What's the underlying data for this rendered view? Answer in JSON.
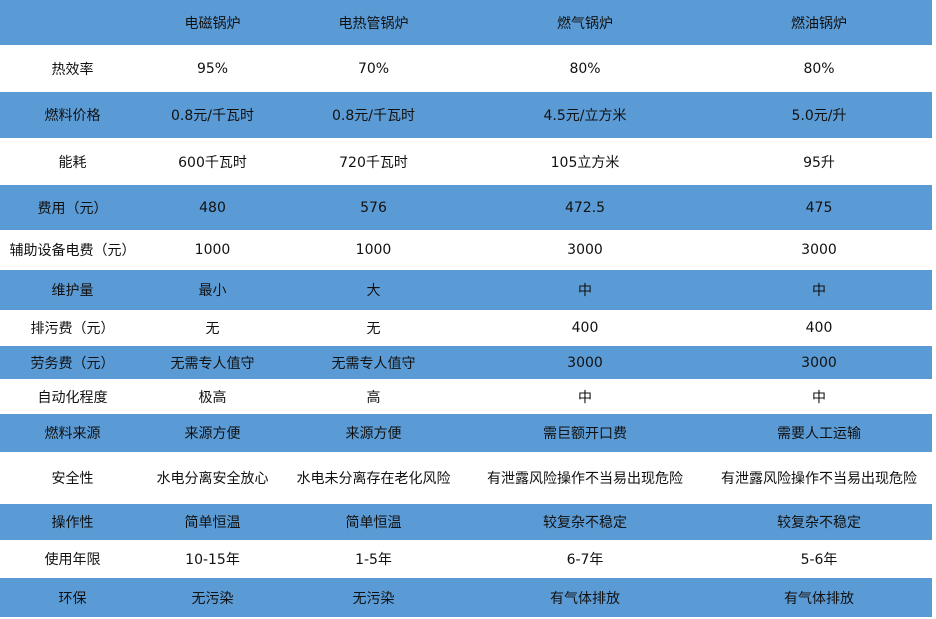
{
  "colors": {
    "band": "#5b9bd5",
    "alt": "#ffffff"
  },
  "header": [
    "",
    "电磁锅炉",
    "电热管锅炉",
    "燃气锅炉",
    "燃油锅炉"
  ],
  "rows": [
    [
      "热效率",
      "95%",
      "70%",
      "80%",
      "80%"
    ],
    [
      "燃料价格",
      "0.8元/千瓦时",
      "0.8元/千瓦时",
      "4.5元/立方米",
      "5.0元/升"
    ],
    [
      "能耗",
      "600千瓦时",
      "720千瓦时",
      "105立方米",
      "95升"
    ],
    [
      "费用（元）",
      "480",
      "576",
      "472.5",
      "475"
    ],
    [
      "辅助设备电费（元）",
      "1000",
      "1000",
      "3000",
      "3000"
    ],
    [
      "维护量",
      "最小",
      "大",
      "中",
      "中"
    ],
    [
      "排污费（元）",
      "无",
      "无",
      "400",
      "400"
    ],
    [
      "劳务费（元）",
      "无需专人值守",
      "无需专人值守",
      "3000",
      "3000"
    ],
    [
      "自动化程度",
      "极高",
      "高",
      "中",
      "中"
    ],
    [
      "燃料来源",
      "来源方便",
      "来源方便",
      "需巨额开口费",
      "需要人工运输"
    ],
    [
      "安全性",
      "水电分离安全放心",
      "水电未分离存在老化风险",
      "有泄露风险操作不当易出现危险",
      "有泄露风险操作不当易出现危险"
    ],
    [
      "操作性",
      "简单恒温",
      "简单恒温",
      "较复杂不稳定",
      "较复杂不稳定"
    ],
    [
      "使用年限",
      "10-15年",
      "1-5年",
      "6-7年",
      "5-6年"
    ],
    [
      "环保",
      "无污染",
      "无污染",
      "有气体排放",
      "有气体排放"
    ]
  ]
}
